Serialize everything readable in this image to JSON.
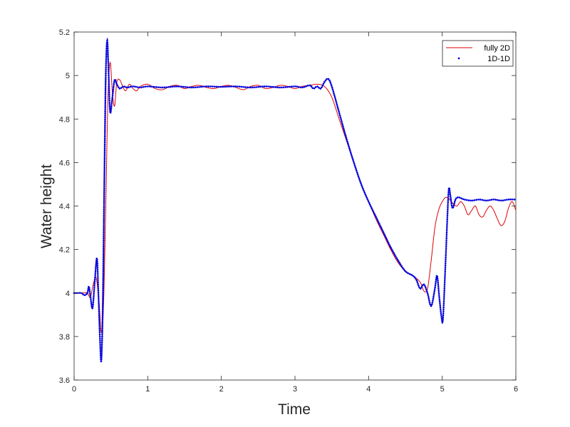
{
  "chart_data": {
    "type": "line",
    "title": "",
    "xlabel": "Time",
    "ylabel": "Water height",
    "xlim": [
      0,
      6
    ],
    "ylim": [
      3.6,
      5.2
    ],
    "xticks": [
      0,
      1,
      2,
      3,
      4,
      5,
      6
    ],
    "xtick_labels": [
      "0",
      "1",
      "2",
      "3",
      "4",
      "5",
      "6"
    ],
    "yticks": [
      3.6,
      3.8,
      4.0,
      4.2,
      4.4,
      4.6,
      4.8,
      5.0,
      5.2
    ],
    "ytick_labels": [
      "3.6",
      "3.8",
      "4",
      "4.2",
      "4.4",
      "4.6",
      "4.8",
      "5",
      "5.2"
    ],
    "grid": false,
    "legend_position": "top-right",
    "series": [
      {
        "name": "fully 2D",
        "color": "#e00000",
        "style": "solid",
        "points": [
          [
            0.0,
            4.0
          ],
          [
            0.1,
            4.0
          ],
          [
            0.18,
            4.0
          ],
          [
            0.22,
            3.98
          ],
          [
            0.26,
            4.04
          ],
          [
            0.3,
            4.07
          ],
          [
            0.34,
            3.95
          ],
          [
            0.37,
            3.82
          ],
          [
            0.4,
            3.95
          ],
          [
            0.43,
            4.4
          ],
          [
            0.46,
            4.9
          ],
          [
            0.49,
            5.06
          ],
          [
            0.52,
            4.92
          ],
          [
            0.55,
            4.86
          ],
          [
            0.58,
            4.97
          ],
          [
            0.62,
            4.98
          ],
          [
            0.66,
            4.95
          ],
          [
            0.7,
            4.93
          ],
          [
            0.75,
            4.96
          ],
          [
            0.8,
            4.94
          ],
          [
            0.85,
            4.93
          ],
          [
            0.9,
            4.95
          ],
          [
            1.0,
            4.96
          ],
          [
            1.1,
            4.94
          ],
          [
            1.2,
            4.935
          ],
          [
            1.3,
            4.95
          ],
          [
            1.4,
            4.955
          ],
          [
            1.5,
            4.94
          ],
          [
            1.6,
            4.95
          ],
          [
            1.7,
            4.955
          ],
          [
            1.8,
            4.945
          ],
          [
            1.9,
            4.94
          ],
          [
            2.0,
            4.95
          ],
          [
            2.1,
            4.955
          ],
          [
            2.2,
            4.945
          ],
          [
            2.3,
            4.935
          ],
          [
            2.4,
            4.95
          ],
          [
            2.5,
            4.955
          ],
          [
            2.6,
            4.94
          ],
          [
            2.7,
            4.945
          ],
          [
            2.8,
            4.955
          ],
          [
            2.9,
            4.95
          ],
          [
            3.0,
            4.94
          ],
          [
            3.1,
            4.95
          ],
          [
            3.2,
            4.955
          ],
          [
            3.3,
            4.96
          ],
          [
            3.4,
            4.95
          ],
          [
            3.5,
            4.9
          ],
          [
            3.6,
            4.8
          ],
          [
            3.7,
            4.7
          ],
          [
            3.8,
            4.6
          ],
          [
            3.9,
            4.5
          ],
          [
            4.0,
            4.42
          ],
          [
            4.1,
            4.34
          ],
          [
            4.2,
            4.27
          ],
          [
            4.3,
            4.2
          ],
          [
            4.4,
            4.14
          ],
          [
            4.5,
            4.1
          ],
          [
            4.6,
            4.08
          ],
          [
            4.7,
            4.05
          ],
          [
            4.75,
            4.01
          ],
          [
            4.8,
            4.02
          ],
          [
            4.85,
            4.15
          ],
          [
            4.9,
            4.3
          ],
          [
            4.95,
            4.38
          ],
          [
            5.0,
            4.42
          ],
          [
            5.05,
            4.44
          ],
          [
            5.1,
            4.43
          ],
          [
            5.15,
            4.41
          ],
          [
            5.2,
            4.4
          ],
          [
            5.25,
            4.42
          ],
          [
            5.3,
            4.4
          ],
          [
            5.35,
            4.36
          ],
          [
            5.4,
            4.38
          ],
          [
            5.45,
            4.4
          ],
          [
            5.5,
            4.36
          ],
          [
            5.55,
            4.35
          ],
          [
            5.6,
            4.38
          ],
          [
            5.65,
            4.4
          ],
          [
            5.7,
            4.38
          ],
          [
            5.75,
            4.34
          ],
          [
            5.8,
            4.31
          ],
          [
            5.85,
            4.33
          ],
          [
            5.9,
            4.39
          ],
          [
            5.95,
            4.42
          ],
          [
            6.0,
            4.38
          ]
        ]
      },
      {
        "name": "1D-1D",
        "color": "#0000dd",
        "style": "dotted",
        "points": [
          [
            0.0,
            4.0
          ],
          [
            0.05,
            4.0
          ],
          [
            0.1,
            4.0
          ],
          [
            0.14,
            3.99
          ],
          [
            0.18,
            4.0
          ],
          [
            0.2,
            4.03
          ],
          [
            0.22,
            3.99
          ],
          [
            0.25,
            3.93
          ],
          [
            0.28,
            4.05
          ],
          [
            0.31,
            4.16
          ],
          [
            0.33,
            4.0
          ],
          [
            0.35,
            3.8
          ],
          [
            0.37,
            3.69
          ],
          [
            0.39,
            3.95
          ],
          [
            0.41,
            4.5
          ],
          [
            0.43,
            5.0
          ],
          [
            0.45,
            5.16
          ],
          [
            0.47,
            5.0
          ],
          [
            0.49,
            4.83
          ],
          [
            0.52,
            4.9
          ],
          [
            0.55,
            4.98
          ],
          [
            0.58,
            4.96
          ],
          [
            0.62,
            4.94
          ],
          [
            0.67,
            4.95
          ],
          [
            0.72,
            4.945
          ],
          [
            0.8,
            4.95
          ],
          [
            0.9,
            4.945
          ],
          [
            1.0,
            4.95
          ],
          [
            1.2,
            4.945
          ],
          [
            1.4,
            4.95
          ],
          [
            1.6,
            4.945
          ],
          [
            1.8,
            4.95
          ],
          [
            2.0,
            4.948
          ],
          [
            2.2,
            4.95
          ],
          [
            2.4,
            4.945
          ],
          [
            2.6,
            4.95
          ],
          [
            2.8,
            4.945
          ],
          [
            3.0,
            4.95
          ],
          [
            3.1,
            4.945
          ],
          [
            3.2,
            4.955
          ],
          [
            3.25,
            4.94
          ],
          [
            3.3,
            4.95
          ],
          [
            3.35,
            4.94
          ],
          [
            3.4,
            4.97
          ],
          [
            3.45,
            4.985
          ],
          [
            3.5,
            4.95
          ],
          [
            3.6,
            4.83
          ],
          [
            3.7,
            4.71
          ],
          [
            3.8,
            4.6
          ],
          [
            3.9,
            4.5
          ],
          [
            4.0,
            4.42
          ],
          [
            4.1,
            4.35
          ],
          [
            4.2,
            4.28
          ],
          [
            4.3,
            4.21
          ],
          [
            4.4,
            4.15
          ],
          [
            4.5,
            4.1
          ],
          [
            4.6,
            4.08
          ],
          [
            4.65,
            4.06
          ],
          [
            4.7,
            4.02
          ],
          [
            4.75,
            4.04
          ],
          [
            4.8,
            4.0
          ],
          [
            4.85,
            3.94
          ],
          [
            4.9,
            4.02
          ],
          [
            4.93,
            4.08
          ],
          [
            4.96,
            3.98
          ],
          [
            4.99,
            3.89
          ],
          [
            5.01,
            3.88
          ],
          [
            5.04,
            4.1
          ],
          [
            5.07,
            4.35
          ],
          [
            5.09,
            4.48
          ],
          [
            5.11,
            4.45
          ],
          [
            5.14,
            4.39
          ],
          [
            5.18,
            4.43
          ],
          [
            5.22,
            4.44
          ],
          [
            5.3,
            4.43
          ],
          [
            5.4,
            4.425
          ],
          [
            5.5,
            4.43
          ],
          [
            5.6,
            4.425
          ],
          [
            5.7,
            4.43
          ],
          [
            5.8,
            4.425
          ],
          [
            5.9,
            4.43
          ],
          [
            6.0,
            4.43
          ]
        ]
      }
    ]
  }
}
